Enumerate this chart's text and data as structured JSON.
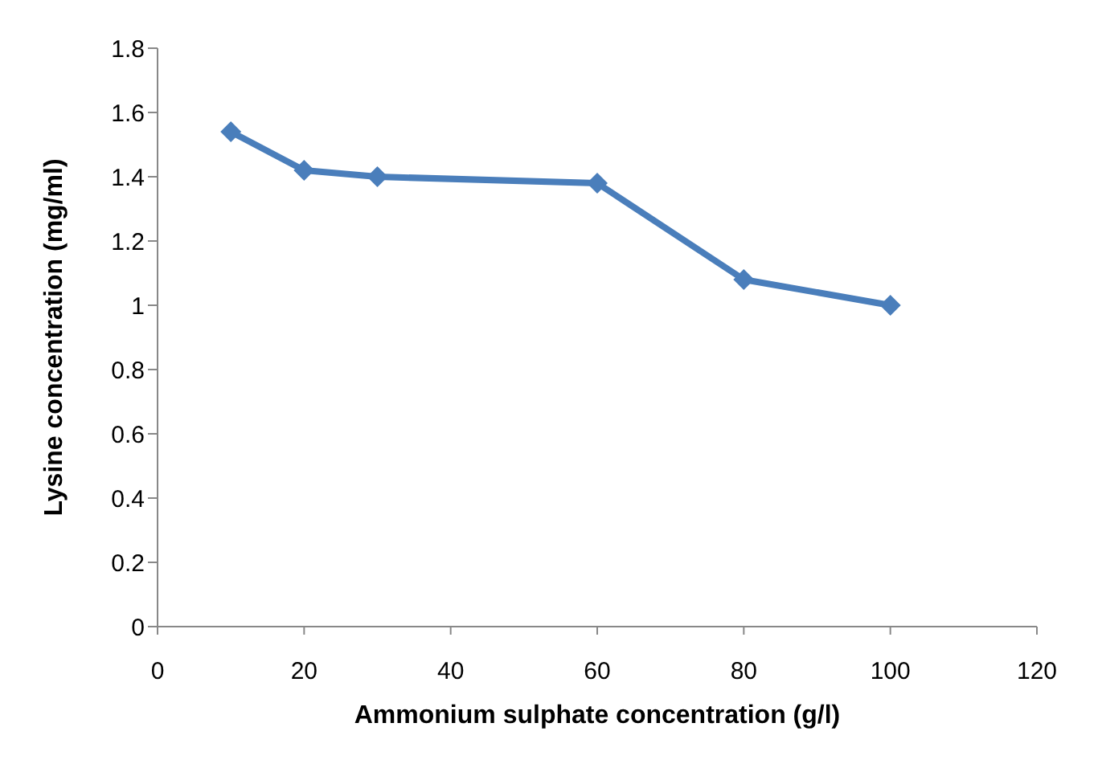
{
  "chart_data": {
    "type": "line",
    "xlabel": "Ammonium sulphate concentration (g/l)",
    "ylabel": "Lysine concentration (mg/ml)",
    "x": [
      10,
      20,
      30,
      60,
      80,
      100
    ],
    "series": [
      {
        "color": "#4a7ebb",
        "values": [
          1.54,
          1.42,
          1.4,
          1.38,
          1.08,
          1.0
        ]
      }
    ],
    "xlim": [
      0,
      120
    ],
    "xticks": [
      0,
      20,
      40,
      60,
      80,
      100,
      120
    ],
    "ylim": [
      0,
      1.8
    ],
    "yticks": [
      0,
      0.2,
      0.4,
      0.6,
      0.8,
      1,
      1.2,
      1.4,
      1.6,
      1.8
    ],
    "grid": false,
    "marker": "diamond",
    "line_style": "solid"
  }
}
